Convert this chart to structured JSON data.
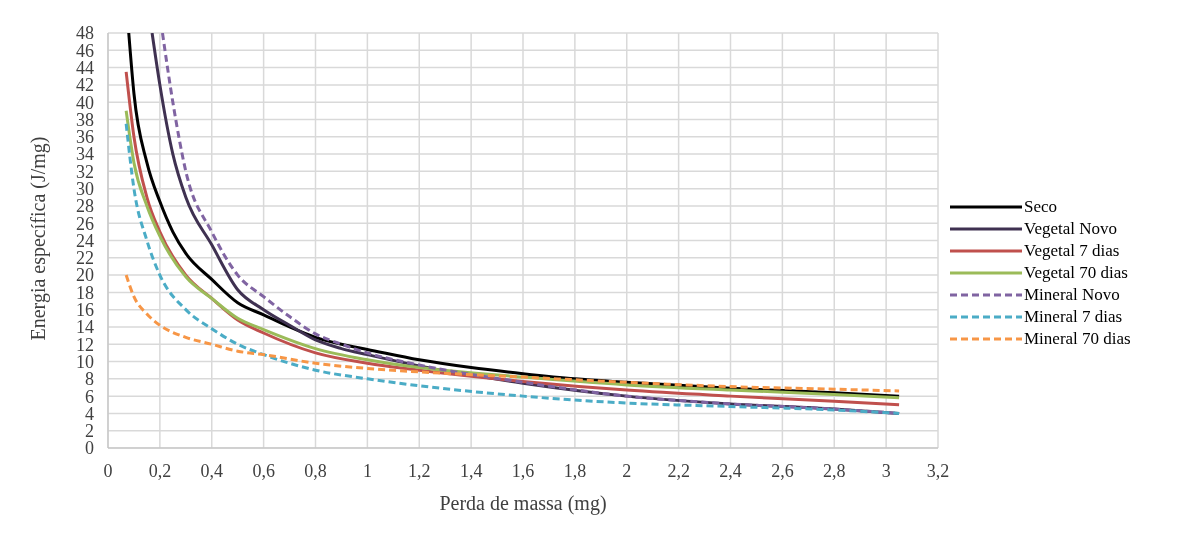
{
  "chart_data": {
    "type": "line",
    "xlabel": "Perda de massa (mg)",
    "ylabel": "Energia específica  (J/mg)",
    "xlim": [
      0,
      3.2
    ],
    "ylim": [
      0,
      48
    ],
    "xticks": [
      0,
      {
        "value": 0.2,
        "label": "0,2"
      },
      {
        "value": 0.4,
        "label": "0,4"
      },
      {
        "value": 0.6,
        "label": "0,6"
      },
      {
        "value": 0.8,
        "label": "0,8"
      },
      1,
      {
        "value": 1.2,
        "label": "1,2"
      },
      {
        "value": 1.4,
        "label": "1,4"
      },
      {
        "value": 1.6,
        "label": "1,6"
      },
      {
        "value": 1.8,
        "label": "1,8"
      },
      2,
      {
        "value": 2.2,
        "label": "2,2"
      },
      {
        "value": 2.4,
        "label": "2,4"
      },
      {
        "value": 2.6,
        "label": "2,6"
      },
      {
        "value": 2.8,
        "label": "2,8"
      },
      3,
      {
        "value": 3.2,
        "label": "3,2"
      }
    ],
    "yticks": [
      0,
      2,
      4,
      6,
      8,
      10,
      12,
      14,
      16,
      18,
      20,
      22,
      24,
      26,
      28,
      30,
      32,
      34,
      36,
      38,
      40,
      42,
      44,
      46,
      48
    ],
    "grid": true,
    "legend": "right",
    "marker": "none",
    "series": [
      {
        "name": "Seco",
        "color": "#000000",
        "line_style": "solid",
        "x": [
          0.08,
          0.1,
          0.15,
          0.2,
          0.25,
          0.3,
          0.4,
          0.5,
          0.6,
          0.7,
          0.8,
          0.9,
          1,
          1.2,
          1.4,
          1.6,
          1.8,
          2,
          2.4,
          2.8,
          3.05
        ],
        "values": [
          48,
          41,
          33,
          28.5,
          25,
          22.5,
          19.5,
          16.8,
          15.4,
          14,
          12.8,
          12,
          11.4,
          10.2,
          9.3,
          8.6,
          8,
          7.6,
          6.9,
          6.4,
          6
        ]
      },
      {
        "name": "Vegetal Novo",
        "color": "#3f3151",
        "line_style": "solid",
        "x": [
          0.17,
          0.2,
          0.25,
          0.3,
          0.4,
          0.5,
          0.6,
          0.7,
          0.8,
          0.9,
          1,
          1.2,
          1.6,
          2,
          2.4,
          2.8,
          3.05
        ],
        "values": [
          48,
          42,
          34,
          29,
          23.5,
          18.3,
          16,
          14.2,
          12.5,
          11.5,
          10.8,
          9.5,
          7.5,
          6,
          5.1,
          4.5,
          4
        ]
      },
      {
        "name": "Vegetal 7 dias",
        "color": "#c0504d",
        "line_style": "solid",
        "x": [
          0.07,
          0.1,
          0.15,
          0.2,
          0.3,
          0.4,
          0.5,
          0.6,
          0.8,
          1,
          1.2,
          1.6,
          2,
          2.4,
          2.8,
          3.05
        ],
        "values": [
          43.5,
          36,
          29,
          25,
          20,
          17.3,
          14.8,
          13.3,
          11,
          9.8,
          9,
          7.7,
          6.7,
          6,
          5.4,
          5
        ]
      },
      {
        "name": "Vegetal 70 dias",
        "color": "#9bbb59",
        "line_style": "solid",
        "x": [
          0.07,
          0.1,
          0.15,
          0.2,
          0.3,
          0.4,
          0.5,
          0.6,
          0.8,
          1,
          1.2,
          1.6,
          2,
          2.4,
          2.8,
          3.05
        ],
        "values": [
          39,
          33,
          28,
          24.5,
          19.8,
          17.3,
          15,
          13.7,
          11.5,
          10.2,
          9.3,
          8.2,
          7.3,
          6.7,
          6.2,
          5.8
        ]
      },
      {
        "name": "Mineral Novo",
        "color": "#8064a2",
        "line_style": "dashed",
        "x": [
          0.21,
          0.25,
          0.3,
          0.4,
          0.5,
          0.6,
          0.7,
          0.8,
          0.9,
          1,
          1.2,
          1.6,
          2,
          2.4,
          2.8,
          3.05
        ],
        "values": [
          48,
          40,
          32,
          25,
          20,
          17.5,
          15.2,
          13.2,
          12,
          11,
          9.6,
          7.6,
          6,
          5.1,
          4.5,
          4
        ]
      },
      {
        "name": "Mineral 7 dias",
        "color": "#4bacc6",
        "line_style": "dashed",
        "x": [
          0.07,
          0.1,
          0.15,
          0.2,
          0.3,
          0.4,
          0.5,
          0.6,
          0.8,
          1,
          1.2,
          1.6,
          2,
          2.4,
          2.8,
          3.05
        ],
        "values": [
          37.5,
          30,
          24,
          20,
          16,
          13.8,
          12,
          10.8,
          9,
          8,
          7.2,
          6,
          5.2,
          4.8,
          4.4,
          4
        ]
      },
      {
        "name": "Mineral 70 dias",
        "color": "#f79646",
        "line_style": "dashed",
        "x": [
          0.07,
          0.1,
          0.15,
          0.2,
          0.3,
          0.4,
          0.5,
          0.6,
          0.8,
          1,
          1.2,
          1.6,
          2,
          2.4,
          2.8,
          3.05
        ],
        "values": [
          20,
          17.5,
          15.5,
          14.2,
          12.8,
          12,
          11.2,
          10.8,
          9.8,
          9.2,
          8.8,
          8.2,
          7.6,
          7.1,
          6.8,
          6.6
        ]
      }
    ]
  }
}
